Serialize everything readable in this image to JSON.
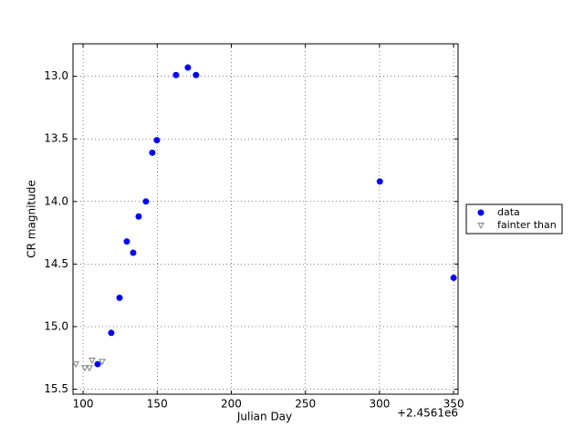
{
  "chart_data": {
    "type": "scatter",
    "x_label": "Julian Day",
    "y_label": "CR magnitude",
    "x_offset_label": "+2.4561e6",
    "xlim": [
      93.2,
      353
    ],
    "ylim": [
      12.74,
      15.54
    ],
    "y_inverted": true,
    "grid": true,
    "xticks": [
      100,
      150,
      200,
      250,
      300,
      350
    ],
    "yticks": [
      {
        "value": 13,
        "label": "13.0"
      },
      {
        "value": 13.5,
        "label": "13.5"
      },
      {
        "value": 14,
        "label": "14.0"
      },
      {
        "value": 14.5,
        "label": "14.5"
      },
      {
        "value": 15,
        "label": "15.0"
      },
      {
        "value": 15.5,
        "label": "15.5"
      }
    ],
    "legend": "right",
    "series": [
      {
        "name": "data",
        "color": "#0000ff",
        "marker": "circle",
        "x": [
          109.8,
          119.0,
          124.6,
          129.5,
          133.8,
          137.5,
          142.4,
          146.7,
          149.8,
          162.7,
          170.7,
          176.2,
          300.2,
          350.0
        ],
        "values": [
          15.3,
          15.05,
          14.77,
          14.32,
          14.41,
          14.12,
          14.0,
          13.61,
          13.51,
          12.99,
          12.93,
          12.99,
          13.84,
          14.61
        ]
      },
      {
        "name": "fainter than",
        "color": "#808080",
        "marker": "triangle-down",
        "x": [
          95.1,
          101.2,
          104.3,
          106.1,
          112.9
        ],
        "values": [
          15.3,
          15.33,
          15.33,
          15.27,
          15.28
        ]
      }
    ]
  }
}
